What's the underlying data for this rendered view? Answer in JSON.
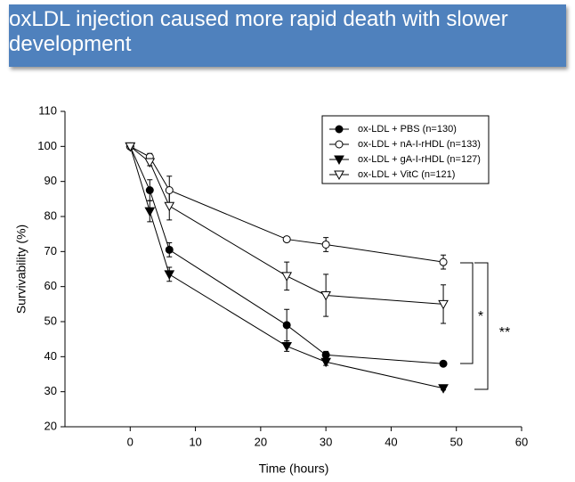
{
  "chart_data": {
    "type": "line",
    "title": "oxLDL injection caused more rapid death with slower development",
    "x_label": "Time (hours)",
    "y_label": "Survivability (%)",
    "x": [
      0,
      3,
      6,
      24,
      30,
      48
    ],
    "series": [
      {
        "name": "ox-LDL + PBS (n=130)",
        "color": "#000000",
        "fill": "#000000",
        "marker": "circle",
        "values": [
          100,
          87.5,
          70.5,
          49,
          40.5,
          38
        ],
        "errors": [
          0.5,
          3,
          2,
          4.5,
          1,
          0.5
        ]
      },
      {
        "name": "ox-LDL + nA-I-rHDL (n=133)",
        "color": "#000000",
        "fill": "#ffffff",
        "marker": "circle",
        "values": [
          100,
          97,
          87.5,
          73.5,
          72,
          67
        ],
        "errors": [
          0.5,
          1,
          4,
          0.5,
          2,
          2
        ]
      },
      {
        "name": "ox-LDL + gA-I-rHDL (n=127)",
        "color": "#000000",
        "fill": "#000000",
        "marker": "triangle-down",
        "values": [
          100,
          81.5,
          63.5,
          43,
          38.5,
          31
        ],
        "errors": [
          0.5,
          3,
          2,
          1.5,
          1,
          0.5
        ]
      },
      {
        "name": "ox-LDL + VitC (n=121)",
        "color": "#000000",
        "fill": "#ffffff",
        "marker": "triangle-down",
        "values": [
          100,
          95.5,
          83,
          63,
          57.5,
          55
        ],
        "errors": [
          0.5,
          1,
          4,
          4,
          6,
          5.5
        ]
      }
    ],
    "xlim": [
      -10,
      60
    ],
    "xticks": [
      0,
      10,
      20,
      30,
      40,
      50,
      60
    ],
    "ylim": [
      20,
      110
    ],
    "yticks": [
      20,
      30,
      40,
      50,
      60,
      70,
      80,
      90,
      100,
      110
    ],
    "legend": "upper right",
    "annotations": [
      "*",
      "**"
    ]
  }
}
